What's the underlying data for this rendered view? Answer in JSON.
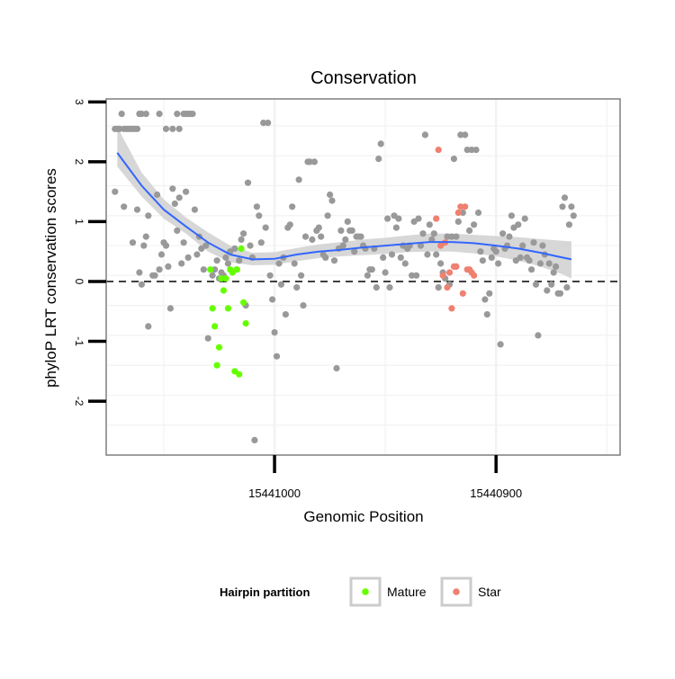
{
  "chart_data": {
    "type": "scatter",
    "title": "Conservation",
    "xlabel": "Genomic Position",
    "ylabel": "phyloP LRT conservation scores",
    "x_reversed": true,
    "xlim": [
      15441076,
      15440844
    ],
    "ylim": [
      -2.9,
      3.05
    ],
    "x_ticks": [
      15441000,
      15440900
    ],
    "x_tick_labels": [
      "15441000",
      "15440900"
    ],
    "y_ticks": [
      -2,
      -1,
      0,
      1,
      2,
      3
    ],
    "y_tick_labels": [
      "-2",
      "-1",
      "0",
      "1",
      "2",
      "3"
    ],
    "grid": true,
    "reference_line": {
      "y": 0,
      "style": "dashed"
    },
    "legend": {
      "title": "Hairpin partition",
      "placement": "bottom",
      "entries": [
        {
          "label": "Mature",
          "color": "#66ff00"
        },
        {
          "label": "Star",
          "color": "#f08070"
        }
      ]
    },
    "colors": {
      "other": "#999999",
      "mature": "#66ff00",
      "star": "#f08070",
      "smooth": "#3366ff",
      "ribbon": "#d3d3d3"
    },
    "series": [
      {
        "group": "other",
        "points": [
          [
            15441072,
            2.55
          ],
          [
            15441071,
            2.55
          ],
          [
            15441070,
            2.55
          ],
          [
            15441069,
            2.8
          ],
          [
            15441068,
            2.55
          ],
          [
            15441067,
            2.55
          ],
          [
            15441066,
            2.55
          ],
          [
            15441065,
            2.55
          ],
          [
            15441064,
            2.55
          ],
          [
            15441063,
            2.55
          ],
          [
            15441062,
            2.55
          ],
          [
            15441061,
            2.8
          ],
          [
            15441060,
            2.8
          ],
          [
            15441058,
            2.8
          ],
          [
            15441052,
            2.8
          ],
          [
            15441049,
            2.55
          ],
          [
            15441046,
            2.55
          ],
          [
            15441044,
            2.8
          ],
          [
            15441043,
            2.55
          ],
          [
            15441041,
            2.8
          ],
          [
            15441040,
            2.8
          ],
          [
            15441039,
            2.8
          ],
          [
            15441038,
            2.8
          ],
          [
            15441037,
            2.8
          ],
          [
            15441072,
            1.5
          ],
          [
            15441068,
            1.25
          ],
          [
            15441064,
            0.65
          ],
          [
            15441062,
            1.2
          ],
          [
            15441061,
            0.15
          ],
          [
            15441060,
            -0.05
          ],
          [
            15441059,
            0.6
          ],
          [
            15441058,
            0.75
          ],
          [
            15441057,
            1.1
          ],
          [
            15441057,
            -0.75
          ],
          [
            15441055,
            0.1
          ],
          [
            15441054,
            0.1
          ],
          [
            15441053,
            1.45
          ],
          [
            15441052,
            0.2
          ],
          [
            15441051,
            0.45
          ],
          [
            15441050,
            0.65
          ],
          [
            15441049,
            0.6
          ],
          [
            15441048,
            0.25
          ],
          [
            15441047,
            -0.45
          ],
          [
            15441046,
            1.55
          ],
          [
            15441045,
            1.3
          ],
          [
            15441044,
            0.85
          ],
          [
            15441043,
            1.4
          ],
          [
            15441042,
            0.3
          ],
          [
            15441041,
            0.65
          ],
          [
            15441040,
            1.5
          ],
          [
            15441039,
            0.4
          ],
          [
            15441036,
            1.2
          ],
          [
            15441035,
            0.45
          ],
          [
            15441034,
            0.75
          ],
          [
            15441033,
            0.55
          ],
          [
            15441032,
            0.2
          ],
          [
            15441031,
            0.6
          ],
          [
            15441030,
            -0.95
          ],
          [
            15441028,
            0.1
          ],
          [
            15441027,
            0.2
          ],
          [
            15441026,
            0.35
          ],
          [
            15441025,
            0.05
          ],
          [
            15441024,
            0.15
          ],
          [
            15441023,
            0.1
          ],
          [
            15441022,
            0.4
          ],
          [
            15441021,
            0.3
          ],
          [
            15441020,
            0.5
          ],
          [
            15441018,
            0.55
          ],
          [
            15441017,
            0.2
          ],
          [
            15441016,
            0.35
          ],
          [
            15441015,
            0.7
          ],
          [
            15441014,
            0.8
          ],
          [
            15441013,
            -0.4
          ],
          [
            15441012,
            1.65
          ],
          [
            15441011,
            0.6
          ],
          [
            15441010,
            0.4
          ],
          [
            15441009,
            -2.65
          ],
          [
            15441008,
            1.25
          ],
          [
            15441007,
            1.1
          ],
          [
            15441006,
            0.65
          ],
          [
            15441005,
            2.65
          ],
          [
            15441004,
            0.9
          ],
          [
            15441003,
            2.65
          ],
          [
            15441002,
            0.1
          ],
          [
            15441001,
            -0.3
          ],
          [
            15441000,
            -0.85
          ],
          [
            15440999,
            -1.25
          ],
          [
            15440998,
            0.3
          ],
          [
            15440997,
            -0.05
          ],
          [
            15440996,
            0.4
          ],
          [
            15440995,
            -0.55
          ],
          [
            15440994,
            0.9
          ],
          [
            15440993,
            0.95
          ],
          [
            15440992,
            1.25
          ],
          [
            15440991,
            0.3
          ],
          [
            15440990,
            -0.1
          ],
          [
            15440989,
            1.7
          ],
          [
            15440988,
            0.1
          ],
          [
            15440987,
            -0.4
          ],
          [
            15440986,
            0.75
          ],
          [
            15440985,
            2.0
          ],
          [
            15440984,
            2.0
          ],
          [
            15440983,
            0.7
          ],
          [
            15440982,
            2.0
          ],
          [
            15440981,
            0.85
          ],
          [
            15440980,
            0.9
          ],
          [
            15440979,
            0.75
          ],
          [
            15440978,
            0.45
          ],
          [
            15440977,
            0.4
          ],
          [
            15440976,
            1.1
          ],
          [
            15440975,
            1.45
          ],
          [
            15440974,
            1.35
          ],
          [
            15440973,
            0.35
          ],
          [
            15440972,
            -1.45
          ],
          [
            15440971,
            0.55
          ],
          [
            15440970,
            0.85
          ],
          [
            15440969,
            0.6
          ],
          [
            15440968,
            0.7
          ],
          [
            15440967,
            1.0
          ],
          [
            15440966,
            0.85
          ],
          [
            15440965,
            0.85
          ],
          [
            15440964,
            0.5
          ],
          [
            15440963,
            0.75
          ],
          [
            15440962,
            0.75
          ],
          [
            15440961,
            0.75
          ],
          [
            15440960,
            0.6
          ],
          [
            15440959,
            0.55
          ],
          [
            15440958,
            0.1
          ],
          [
            15440957,
            0.2
          ],
          [
            15440956,
            0.2
          ],
          [
            15440955,
            0.55
          ],
          [
            15440954,
            -0.1
          ],
          [
            15440953,
            2.05
          ],
          [
            15440952,
            2.3
          ],
          [
            15440951,
            0.4
          ],
          [
            15440950,
            0.15
          ],
          [
            15440949,
            1.05
          ],
          [
            15440948,
            -0.1
          ],
          [
            15440947,
            0.45
          ],
          [
            15440946,
            1.1
          ],
          [
            15440945,
            0.9
          ],
          [
            15440944,
            1.05
          ],
          [
            15440943,
            0.4
          ],
          [
            15440942,
            0.6
          ],
          [
            15440941,
            0.3
          ],
          [
            15440940,
            0.55
          ],
          [
            15440939,
            0.6
          ],
          [
            15440938,
            0.1
          ],
          [
            15440937,
            1.0
          ],
          [
            15440936,
            0.1
          ],
          [
            15440935,
            1.05
          ],
          [
            15440934,
            0.6
          ],
          [
            15440933,
            0.8
          ],
          [
            15440932,
            2.45
          ],
          [
            15440931,
            0.45
          ],
          [
            15440930,
            0.95
          ],
          [
            15440929,
            0.7
          ],
          [
            15440928,
            0.8
          ],
          [
            15440927,
            0.45
          ],
          [
            15440926,
            -0.1
          ],
          [
            15440925,
            0.3
          ],
          [
            15440924,
            0.15
          ],
          [
            15440923,
            0.05
          ],
          [
            15440922,
            0.75
          ],
          [
            15440921,
            -0.05
          ],
          [
            15440920,
            0.75
          ],
          [
            15440919,
            2.05
          ],
          [
            15440918,
            0.75
          ],
          [
            15440917,
            1.0
          ],
          [
            15440916,
            2.45
          ],
          [
            15440915,
            1.15
          ],
          [
            15440914,
            2.45
          ],
          [
            15440913,
            2.2
          ],
          [
            15440912,
            0.85
          ],
          [
            15440911,
            2.2
          ],
          [
            15440910,
            0.95
          ],
          [
            15440909,
            2.2
          ],
          [
            15440908,
            1.15
          ],
          [
            15440907,
            0.5
          ],
          [
            15440906,
            0.35
          ],
          [
            15440905,
            -0.3
          ],
          [
            15440904,
            -0.55
          ],
          [
            15440903,
            -0.2
          ],
          [
            15440902,
            0.4
          ],
          [
            15440901,
            0.55
          ],
          [
            15440900,
            0.5
          ],
          [
            15440899,
            0.3
          ],
          [
            15440898,
            -1.05
          ],
          [
            15440897,
            0.8
          ],
          [
            15440896,
            0.55
          ],
          [
            15440895,
            0.6
          ],
          [
            15440894,
            0.75
          ],
          [
            15440893,
            1.1
          ],
          [
            15440892,
            0.9
          ],
          [
            15440891,
            0.35
          ],
          [
            15440890,
            0.95
          ],
          [
            15440889,
            0.4
          ],
          [
            15440888,
            0.6
          ],
          [
            15440887,
            1.05
          ],
          [
            15440886,
            0.4
          ],
          [
            15440885,
            0.35
          ],
          [
            15440884,
            0.2
          ],
          [
            15440883,
            0.65
          ],
          [
            15440882,
            -0.05
          ],
          [
            15440881,
            -0.9
          ],
          [
            15440880,
            0.3
          ],
          [
            15440879,
            0.6
          ],
          [
            15440878,
            0.45
          ],
          [
            15440877,
            -0.15
          ],
          [
            15440876,
            0.3
          ],
          [
            15440875,
            -0.05
          ],
          [
            15440874,
            0.15
          ],
          [
            15440873,
            0.25
          ],
          [
            15440872,
            -0.2
          ],
          [
            15440871,
            -0.2
          ],
          [
            15440870,
            1.25
          ],
          [
            15440869,
            1.4
          ],
          [
            15440868,
            -0.1
          ],
          [
            15440867,
            0.95
          ],
          [
            15440866,
            1.25
          ],
          [
            15440865,
            1.1
          ]
        ]
      },
      {
        "group": "mature",
        "points": [
          [
            15441029,
            0.2
          ],
          [
            15441028,
            -0.45
          ],
          [
            15441027,
            -0.75
          ],
          [
            15441026,
            -1.4
          ],
          [
            15441025,
            -1.1
          ],
          [
            15441024,
            0.05
          ],
          [
            15441023,
            -0.15
          ],
          [
            15441022,
            0.05
          ],
          [
            15441021,
            -0.45
          ],
          [
            15441020,
            0.2
          ],
          [
            15441019,
            0.15
          ],
          [
            15441018,
            -1.5
          ],
          [
            15441017,
            0.2
          ],
          [
            15441016,
            -1.55
          ],
          [
            15441015,
            0.55
          ],
          [
            15441014,
            -0.35
          ],
          [
            15441013,
            -0.7
          ]
        ]
      },
      {
        "group": "star",
        "points": [
          [
            15440927,
            1.05
          ],
          [
            15440926,
            2.2
          ],
          [
            15440925,
            0.6
          ],
          [
            15440924,
            0.1
          ],
          [
            15440923,
            0.65
          ],
          [
            15440922,
            -0.1
          ],
          [
            15440921,
            0.15
          ],
          [
            15440920,
            -0.45
          ],
          [
            15440919,
            0.25
          ],
          [
            15440918,
            0.25
          ],
          [
            15440917,
            1.15
          ],
          [
            15440916,
            1.25
          ],
          [
            15440915,
            -0.2
          ],
          [
            15440914,
            1.25
          ],
          [
            15440913,
            0.2
          ],
          [
            15440912,
            0.2
          ],
          [
            15440911,
            0.15
          ],
          [
            15440910,
            0.1
          ]
        ]
      }
    ],
    "smooth": {
      "x": [
        15441071,
        15441060,
        15441050,
        15441040,
        15441030,
        15441020,
        15441010,
        15441000,
        15440990,
        15440980,
        15440970,
        15440960,
        15440950,
        15440940,
        15440930,
        15440920,
        15440910,
        15440900,
        15440890,
        15440880,
        15440870,
        15440866
      ],
      "y": [
        2.15,
        1.6,
        1.2,
        0.92,
        0.65,
        0.45,
        0.37,
        0.38,
        0.45,
        0.5,
        0.53,
        0.57,
        0.6,
        0.63,
        0.66,
        0.66,
        0.64,
        0.6,
        0.55,
        0.48,
        0.4,
        0.37
      ],
      "lower": [
        1.92,
        1.42,
        1.05,
        0.8,
        0.5,
        0.32,
        0.27,
        0.28,
        0.34,
        0.39,
        0.42,
        0.44,
        0.46,
        0.49,
        0.5,
        0.5,
        0.47,
        0.42,
        0.35,
        0.25,
        0.12,
        0.05
      ],
      "upper": [
        2.58,
        1.82,
        1.37,
        1.07,
        0.82,
        0.6,
        0.48,
        0.49,
        0.56,
        0.62,
        0.66,
        0.7,
        0.73,
        0.77,
        0.8,
        0.8,
        0.78,
        0.76,
        0.74,
        0.71,
        0.68,
        0.67
      ]
    }
  }
}
